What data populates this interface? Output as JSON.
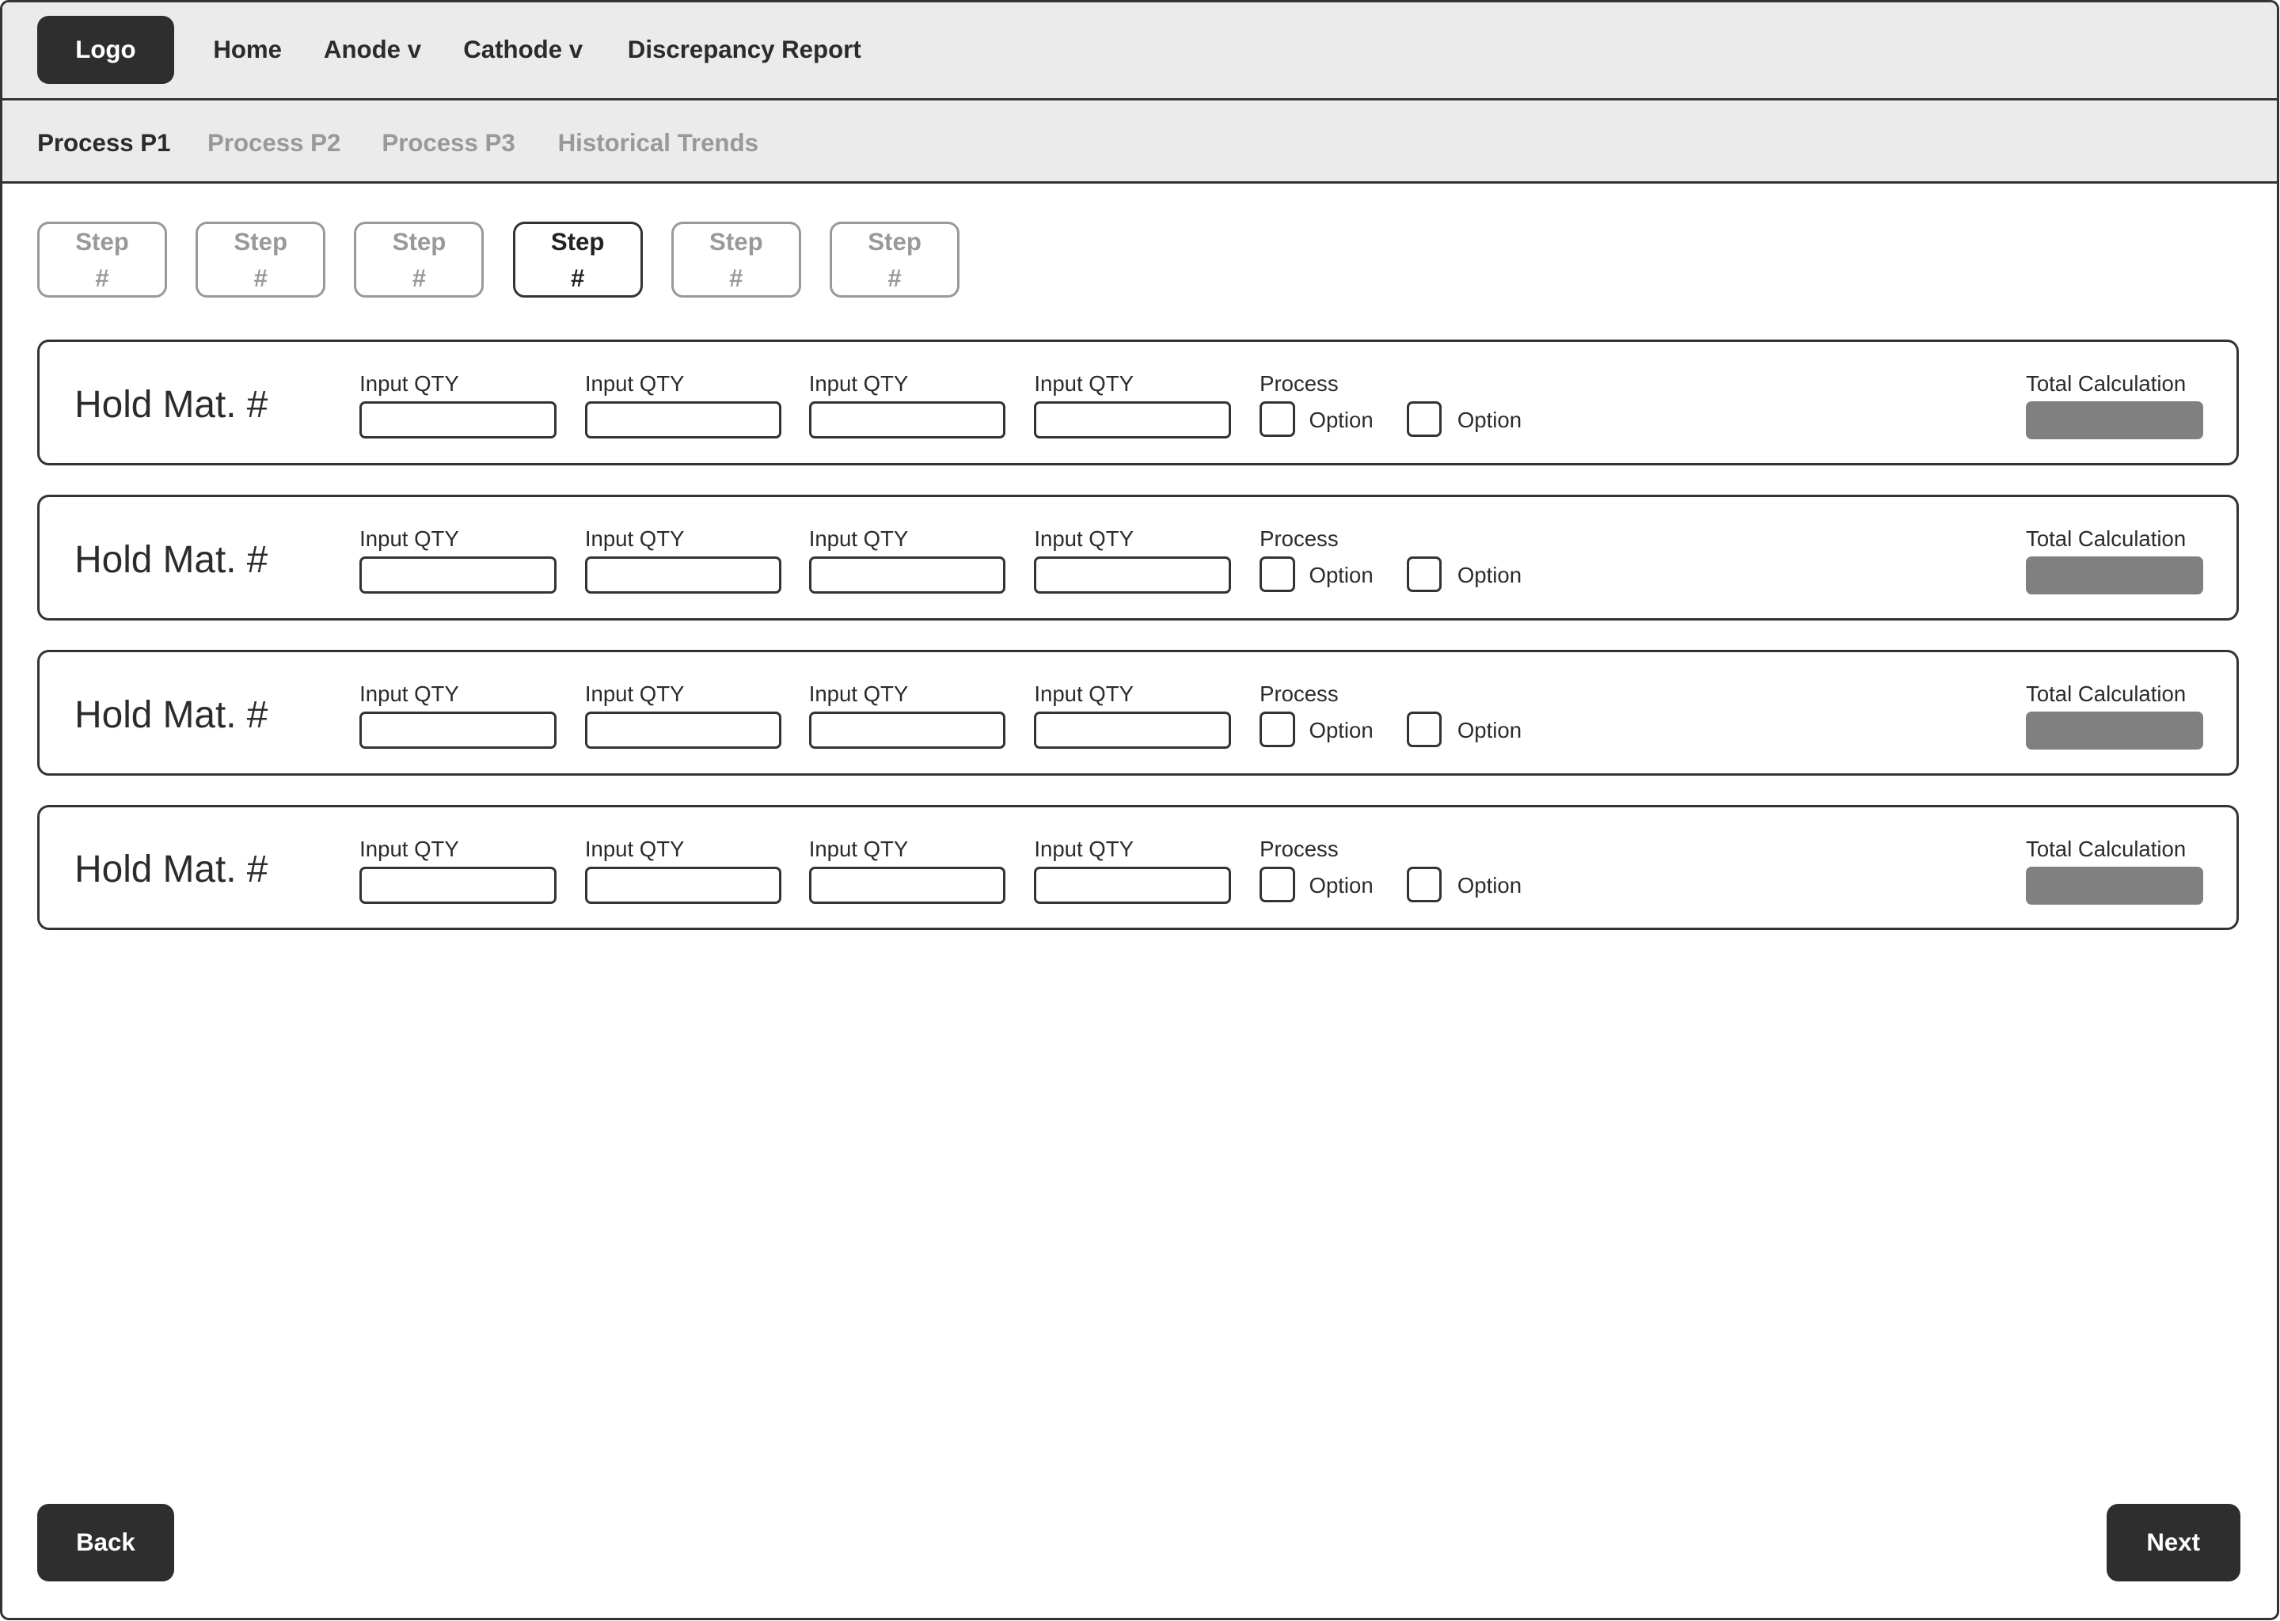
{
  "nav": {
    "logo": "Logo",
    "items": [
      "Home",
      "Anode v",
      "Cathode v",
      "Discrepancy Report"
    ]
  },
  "subnav": {
    "items": [
      "Process P1",
      "Process P2",
      "Process P3",
      "Historical Trends"
    ],
    "active": 0
  },
  "steps": {
    "items": [
      {
        "label": "Step",
        "num": "#"
      },
      {
        "label": "Step",
        "num": "#"
      },
      {
        "label": "Step",
        "num": "#"
      },
      {
        "label": "Step",
        "num": "#"
      },
      {
        "label": "Step",
        "num": "#"
      },
      {
        "label": "Step",
        "num": "#"
      }
    ],
    "active": 3
  },
  "rows": [
    {
      "title": "Hold Mat. #",
      "inputs": [
        "Input QTY",
        "Input QTY",
        "Input QTY",
        "Input QTY"
      ],
      "process_label": "Process",
      "options": [
        "Option",
        "Option"
      ],
      "total_label": "Total Calculation"
    },
    {
      "title": "Hold Mat. #",
      "inputs": [
        "Input QTY",
        "Input QTY",
        "Input QTY",
        "Input QTY"
      ],
      "process_label": "Process",
      "options": [
        "Option",
        "Option"
      ],
      "total_label": "Total Calculation"
    },
    {
      "title": "Hold Mat. #",
      "inputs": [
        "Input QTY",
        "Input QTY",
        "Input QTY",
        "Input QTY"
      ],
      "process_label": "Process",
      "options": [
        "Option",
        "Option"
      ],
      "total_label": "Total Calculation"
    },
    {
      "title": "Hold Mat. #",
      "inputs": [
        "Input QTY",
        "Input QTY",
        "Input QTY",
        "Input QTY"
      ],
      "process_label": "Process",
      "options": [
        "Option",
        "Option"
      ],
      "total_label": "Total Calculation"
    }
  ],
  "footer": {
    "back": "Back",
    "next": "Next"
  },
  "colors": {
    "dark": "#2e2e2e",
    "header_bg": "#ebebeb",
    "muted": "#999999",
    "total_fill": "#808080"
  }
}
